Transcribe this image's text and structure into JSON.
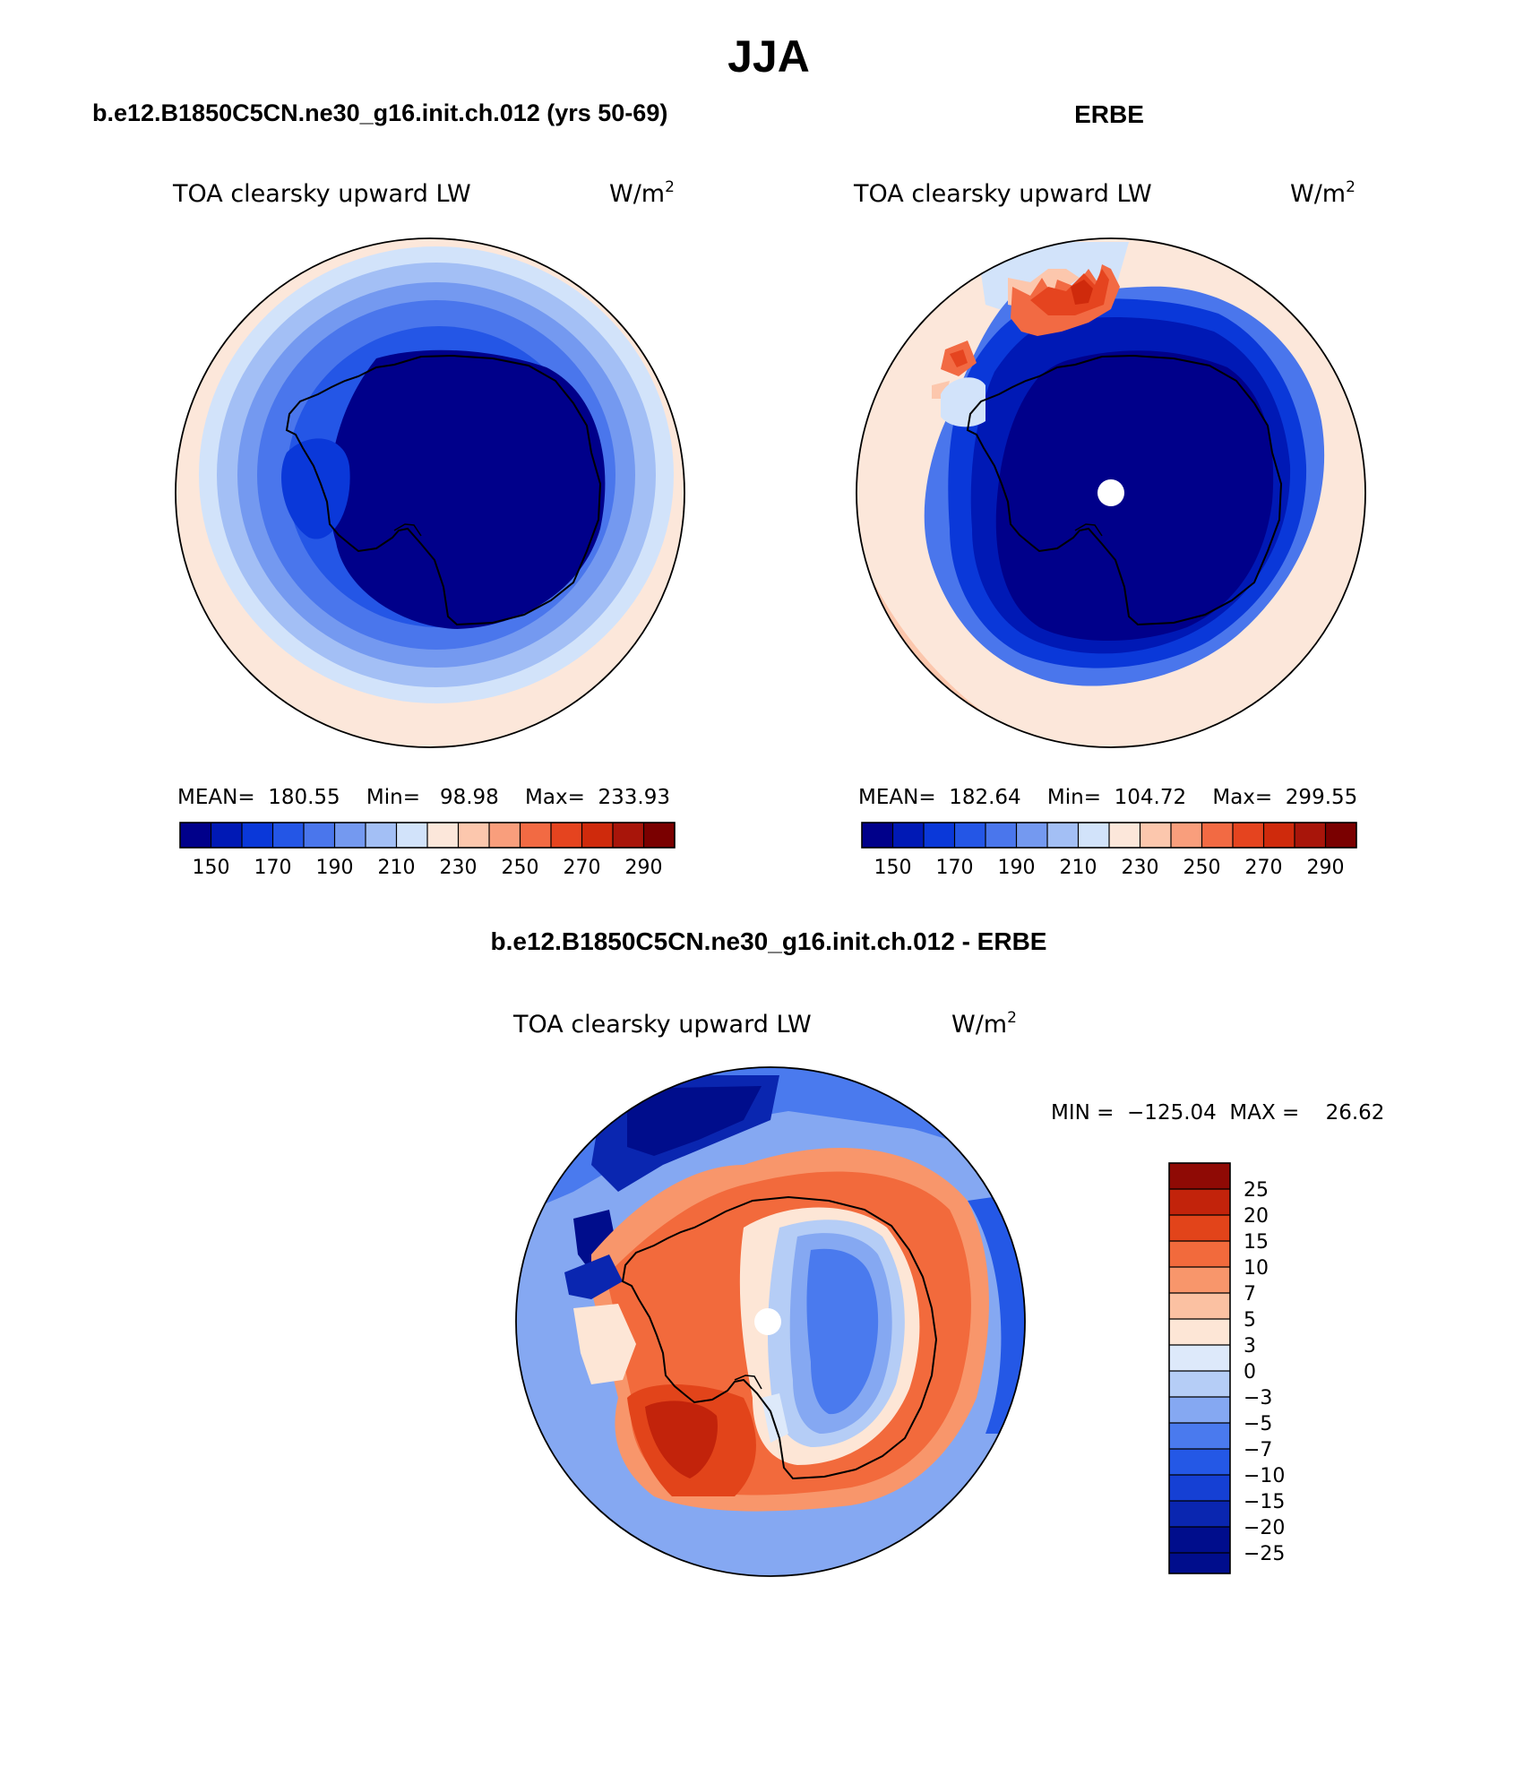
{
  "season": "JJA",
  "panels": {
    "model": {
      "title": "b.e12.B1850C5CN.ne30_g16.init.ch.012 (yrs 50-69)",
      "field": "TOA clearsky upward LW",
      "units_base": "W/m",
      "units_exp": "2",
      "stats": "MEAN=  180.55    Min=   98.98    Max=  233.93",
      "mean": 180.55,
      "min": 98.98,
      "max": 233.93
    },
    "obs": {
      "title": "ERBE",
      "field": "TOA clearsky upward LW",
      "units_base": "W/m",
      "units_exp": "2",
      "stats": "MEAN=  182.64    Min=  104.72    Max=  299.55",
      "mean": 182.64,
      "min": 104.72,
      "max": 299.55
    },
    "diff": {
      "title": "b.e12.B1850C5CN.ne30_g16.init.ch.012 - ERBE",
      "field": "TOA clearsky upward LW",
      "units_base": "W/m",
      "units_exp": "2",
      "stats": "MIN =  −125.04  MAX =    26.62",
      "min": -125.04,
      "max": 26.62
    }
  },
  "chart_data": [
    {
      "type": "heatmap",
      "title": "b.e12.B1850C5CN.ne30_g16.init.ch.012 (yrs 50-69)",
      "projection": "south polar stereographic",
      "field": "TOA clearsky upward LW",
      "units": "W/m2",
      "contour_levels": [
        150,
        160,
        170,
        180,
        190,
        200,
        210,
        220,
        230,
        240,
        250,
        260,
        270,
        280,
        290
      ],
      "colorbar_labels": [
        "150",
        "170",
        "190",
        "210",
        "230",
        "250",
        "270",
        "290"
      ],
      "colors": [
        "#00008a",
        "#0019b5",
        "#0a38d9",
        "#2456e6",
        "#4a76ec",
        "#7499f0",
        "#a3bff5",
        "#d2e3fa",
        "#fce7da",
        "#fcc7ad",
        "#f99e7c",
        "#f26a43",
        "#e5441f",
        "#cf2a0c",
        "#a8150a",
        "#7a0000"
      ],
      "mean": 180.55,
      "min": 98.98,
      "max": 233.93
    },
    {
      "type": "heatmap",
      "title": "ERBE",
      "projection": "south polar stereographic",
      "field": "TOA clearsky upward LW",
      "units": "W/m2",
      "contour_levels": [
        150,
        160,
        170,
        180,
        190,
        200,
        210,
        220,
        230,
        240,
        250,
        260,
        270,
        280,
        290
      ],
      "colorbar_labels": [
        "150",
        "170",
        "190",
        "210",
        "230",
        "250",
        "270",
        "290"
      ],
      "mean": 182.64,
      "min": 104.72,
      "max": 299.55
    },
    {
      "type": "heatmap",
      "title": "b.e12.B1850C5CN.ne30_g16.init.ch.012 - ERBE",
      "projection": "south polar stereographic",
      "field": "TOA clearsky upward LW",
      "units": "W/m2",
      "contour_levels": [
        -25,
        -20,
        -15,
        -10,
        -7,
        -5,
        -3,
        0,
        3,
        5,
        7,
        10,
        15,
        20,
        25
      ],
      "colorbar_labels": [
        "25",
        "20",
        "15",
        "10",
        "7",
        "5",
        "3",
        "0",
        "−3",
        "−5",
        "−7",
        "−10",
        "−15",
        "−20",
        "−25"
      ],
      "colors": [
        "#000d8c",
        "#0a26b0",
        "#1540d4",
        "#2458e6",
        "#4a7aee",
        "#85a8f2",
        "#b5cdf6",
        "#dde9fa",
        "#fde6d6",
        "#fbc1a2",
        "#f8966b",
        "#f26a3c",
        "#e2441a",
        "#c2230b",
        "#8f0a05"
      ],
      "min": -125.04,
      "max": 26.62
    }
  ]
}
